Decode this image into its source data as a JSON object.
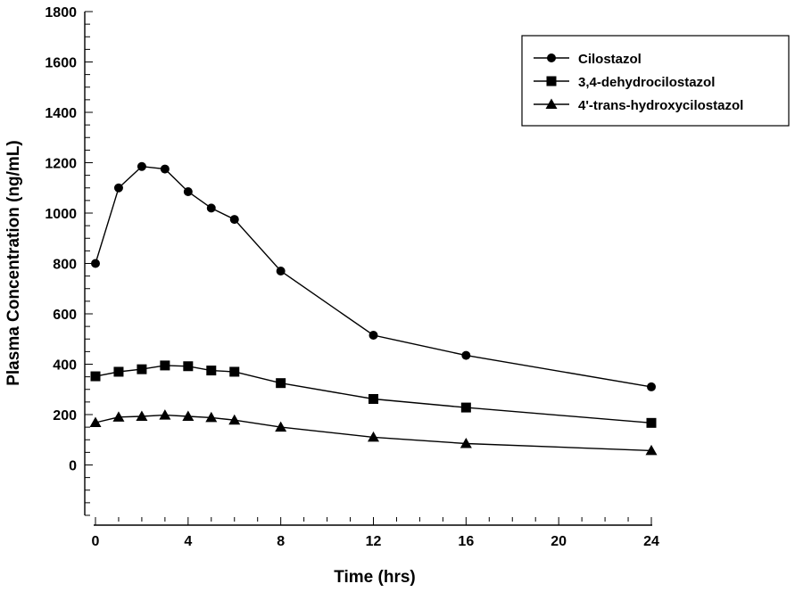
{
  "chart_data": {
    "type": "line",
    "title": "",
    "xlabel": "Time (hrs)",
    "ylabel": "Plasma Concentration (ng/mL)",
    "xlim": [
      0,
      24
    ],
    "ylim": [
      -200,
      1800
    ],
    "x_ticks": [
      0,
      4,
      8,
      12,
      16,
      20,
      24
    ],
    "x_tick_labels": [
      "0",
      "4",
      "8",
      "12",
      "16",
      "20",
      "24"
    ],
    "y_ticks": [
      0,
      200,
      400,
      600,
      800,
      1000,
      1200,
      1400,
      1600,
      1800
    ],
    "y_tick_labels": [
      "0",
      "200",
      "400",
      "600",
      "800",
      "1000",
      "1200",
      "1400",
      "1600",
      "1800"
    ],
    "y_minor_step": 50,
    "x_minor_step": 1,
    "grid": false,
    "legend_position": "top-right",
    "series": [
      {
        "name": "Cilostazol",
        "marker": "circle",
        "color": "#000000",
        "x": [
          0,
          1,
          2,
          3,
          4,
          5,
          6,
          8,
          12,
          16,
          24
        ],
        "y": [
          800,
          1100,
          1185,
          1175,
          1085,
          1020,
          975,
          770,
          515,
          435,
          310
        ]
      },
      {
        "name": "3,4-dehydrocilostazol",
        "marker": "square",
        "color": "#000000",
        "x": [
          0,
          1,
          2,
          3,
          4,
          5,
          6,
          8,
          12,
          16,
          24
        ],
        "y": [
          352,
          370,
          380,
          395,
          392,
          375,
          370,
          325,
          262,
          228,
          167
        ]
      },
      {
        "name": "4'-trans-hydroxycilostazol",
        "marker": "triangle",
        "color": "#000000",
        "x": [
          0,
          1,
          2,
          3,
          4,
          5,
          6,
          8,
          12,
          16,
          24
        ],
        "y": [
          168,
          190,
          193,
          198,
          193,
          188,
          178,
          150,
          110,
          85,
          57
        ]
      }
    ]
  }
}
